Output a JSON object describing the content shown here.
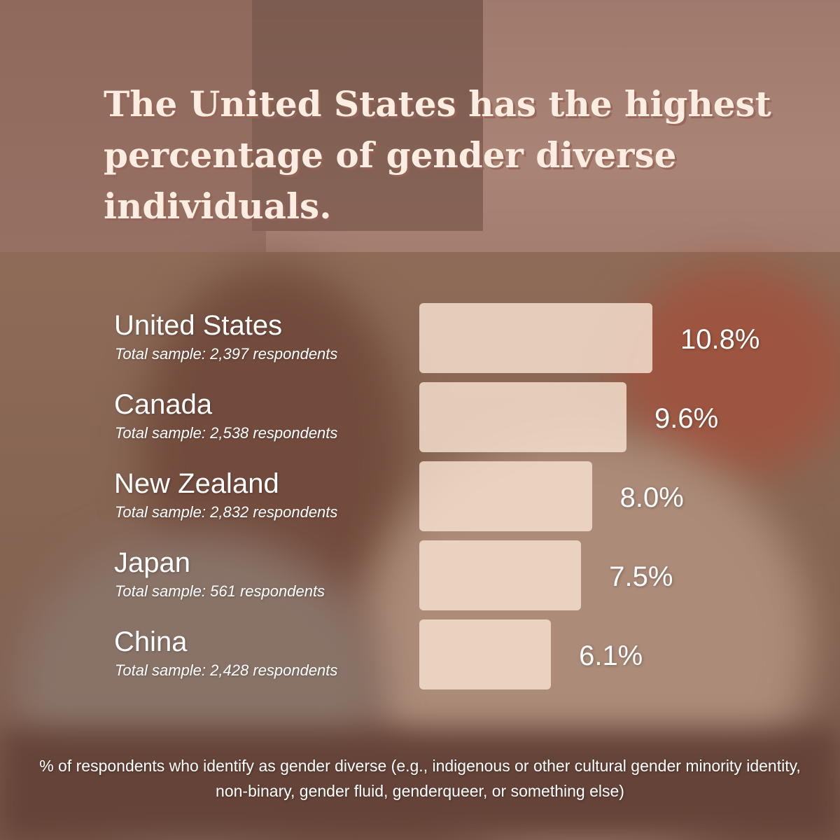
{
  "title": "The United States has the highest percentage of gender diverse individuals.",
  "footnote": "% of respondents who identify as gender diverse (e.g., indigenous or other cultural gender minority identity, non-binary, gender fluid, genderqueer, or something else)",
  "colors": {
    "bar_fill": "#f6e0ce",
    "title_text": "#fbede2",
    "title_shadow": "#96645a",
    "label_text": "#ffffff",
    "background_tint": "#8a6657"
  },
  "chart_data": {
    "type": "bar",
    "orientation": "horizontal",
    "categories": [
      "United States",
      "Canada",
      "New Zealand",
      "Japan",
      "China"
    ],
    "sublabels": [
      "Total sample: 2,397 respondents",
      "Total sample: 2,538 respondents",
      "Total sample: 2,832 respondents",
      "Total sample: 561 respondents",
      "Total sample: 2,428 respondents"
    ],
    "values": [
      10.8,
      9.6,
      8.0,
      7.5,
      6.1
    ],
    "value_labels": [
      "10.8%",
      "9.6%",
      "8.0%",
      "7.5%",
      "6.1%"
    ],
    "title": "The United States has the highest percentage of gender diverse individuals.",
    "xlabel": "% of respondents who identify as gender diverse (e.g., indigenous or other cultural gender minority identity, non-binary, gender fluid, genderqueer, or something else)",
    "ylabel": "",
    "grid": false,
    "legend": "none"
  }
}
